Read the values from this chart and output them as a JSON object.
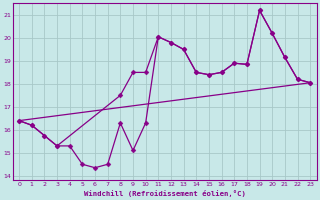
{
  "bg_color": "#c8e8e8",
  "grid_color": "#a8c8c8",
  "line_color": "#880088",
  "xlim": [
    -0.5,
    23.5
  ],
  "ylim": [
    13.8,
    21.5
  ],
  "yticks": [
    14,
    15,
    16,
    17,
    18,
    19,
    20,
    21
  ],
  "xticks": [
    0,
    1,
    2,
    3,
    4,
    5,
    6,
    7,
    8,
    9,
    10,
    11,
    12,
    13,
    14,
    15,
    16,
    17,
    18,
    19,
    20,
    21,
    22,
    23
  ],
  "xlabel": "Windchill (Refroidissement éolien,°C)",
  "line1_x": [
    0,
    23
  ],
  "line1_y": [
    16.4,
    18.05
  ],
  "line2_x": [
    0,
    1,
    2,
    3,
    8,
    9,
    10,
    11,
    12,
    13,
    14,
    15,
    16,
    17,
    18,
    19,
    20,
    21,
    22,
    23
  ],
  "line2_y": [
    16.4,
    16.2,
    15.75,
    15.3,
    17.5,
    18.5,
    18.5,
    20.05,
    19.8,
    19.5,
    18.5,
    18.4,
    18.5,
    18.9,
    18.85,
    21.2,
    20.2,
    19.15,
    18.2,
    18.05
  ],
  "line3_x": [
    0,
    1,
    2,
    3,
    4,
    5,
    6,
    7,
    8,
    9,
    10,
    11,
    12,
    13,
    14,
    15,
    16,
    17,
    18,
    19,
    20,
    21,
    22,
    23
  ],
  "line3_y": [
    16.4,
    16.2,
    15.75,
    15.3,
    15.3,
    14.5,
    14.35,
    14.5,
    16.3,
    15.1,
    16.3,
    20.05,
    19.8,
    19.5,
    18.5,
    18.4,
    18.5,
    18.9,
    18.85,
    21.2,
    20.2,
    19.15,
    18.2,
    18.05
  ],
  "marker_size": 2.5,
  "line_width": 0.9
}
